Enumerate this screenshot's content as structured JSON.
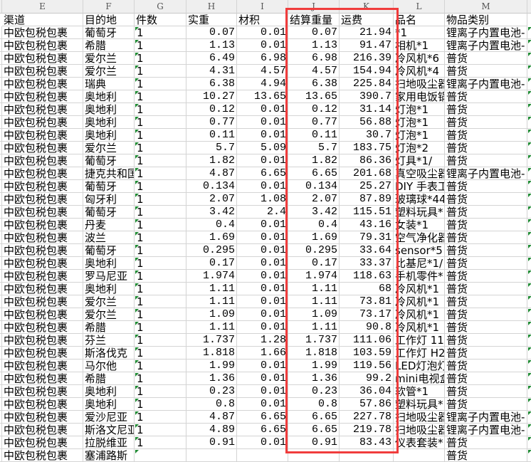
{
  "column_letters": [
    "E",
    "F",
    "G",
    "H",
    "I",
    "J",
    "K",
    "L",
    "M"
  ],
  "headers": [
    "渠道",
    "目的地",
    "件数",
    "实重",
    "材积",
    "结算重量",
    "运费",
    "品名",
    "物品类别"
  ],
  "highlight_color": "#f03c3c",
  "rows": [
    [
      "中欧包税包裹",
      "葡萄牙",
      "1",
      "0.07",
      "0.01",
      "0.07",
      "21.94",
      "*1",
      "锂离子内置电池-"
    ],
    [
      "中欧包税包裹",
      "希腊",
      "1",
      "1.13",
      "0.01",
      "1.13",
      "91.47",
      "相机*1",
      "锂离子内置电池-"
    ],
    [
      "中欧包税包裹",
      "爱尔兰",
      "1",
      "6.49",
      "6.98",
      "6.98",
      "216.39",
      "冷风机*6",
      "普货"
    ],
    [
      "中欧包税包裹",
      "爱尔兰",
      "1",
      "4.31",
      "4.57",
      "4.57",
      "154.94",
      "冷风机*4",
      "普货"
    ],
    [
      "中欧包税包裹",
      "瑞典",
      "1",
      "6.38",
      "4.94",
      "6.38",
      "225.84",
      "扫地吸尘器",
      "锂离子内置电池-"
    ],
    [
      "中欧包税包裹",
      "奥地利",
      "1",
      "10.27",
      "13.65",
      "13.65",
      "390.7",
      "家用电饭锅",
      "普货"
    ],
    [
      "中欧包税包裹",
      "奥地利",
      "1",
      "0.12",
      "0.01",
      "0.12",
      "31.14",
      "灯泡*1",
      "普货"
    ],
    [
      "中欧包税包裹",
      "奥地利",
      "1",
      "0.77",
      "0.01",
      "0.77",
      "56.88",
      "灯泡*1",
      "普货"
    ],
    [
      "中欧包税包裹",
      "奥地利",
      "1",
      "0.11",
      "0.01",
      "0.11",
      "30.7",
      "灯泡*1",
      "普货"
    ],
    [
      "中欧包税包裹",
      "爱尔兰",
      "1",
      "5.7",
      "5.09",
      "5.7",
      "183.75",
      "灯泡*2",
      "普货"
    ],
    [
      "中欧包税包裹",
      "葡萄牙",
      "1",
      "1.82",
      "0.01",
      "1.82",
      "86.36",
      "灯具*1/",
      "普货"
    ],
    [
      "中欧包税包裹",
      "捷克共和国",
      "1",
      "4.87",
      "6.65",
      "6.65",
      "201.68",
      "真空吸尘器",
      "锂离子内置电池-"
    ],
    [
      "中欧包税包裹",
      "葡萄牙",
      "1",
      "0.134",
      "0.01",
      "0.134",
      "25.27",
      "DIY 手表工",
      "普货"
    ],
    [
      "中欧包税包裹",
      "匈牙利",
      "1",
      "2.07",
      "1.08",
      "2.07",
      "87.89",
      "玻璃球*44",
      "普货"
    ],
    [
      "中欧包税包裹",
      "葡萄牙",
      "1",
      "3.42",
      "2.4",
      "3.42",
      "115.51",
      "塑料玩具*",
      "普货"
    ],
    [
      "中欧包税包裹",
      "丹麦",
      "1",
      "0.4",
      "0.01",
      "0.4",
      "43.16",
      "女装*1",
      "普货"
    ],
    [
      "中欧包税包裹",
      "波兰",
      "1",
      "1.69",
      "0.01",
      "1.69",
      "79.31",
      "空气净化器",
      "普货"
    ],
    [
      "中欧包税包裹",
      "葡萄牙",
      "1",
      "0.295",
      "0.01",
      "0.295",
      "33.64",
      "sensor*5",
      "普货"
    ],
    [
      "中欧包税包裹",
      "奥地利",
      "1",
      "0.17",
      "0.01",
      "0.17",
      "33.37",
      "比基尼*1/",
      "普货"
    ],
    [
      "中欧包税包裹",
      "罗马尼亚",
      "1",
      "1.974",
      "0.01",
      "1.974",
      "118.63",
      "手机零件*",
      "普货"
    ],
    [
      "中欧包税包裹",
      "奥地利",
      "1",
      "1.11",
      "0.01",
      "1.11",
      "68",
      "冷风机*1",
      "普货"
    ],
    [
      "中欧包税包裹",
      "爱尔兰",
      "1",
      "1.11",
      "0.01",
      "1.11",
      "73.81",
      "冷风机*1",
      "普货"
    ],
    [
      "中欧包税包裹",
      "爱尔兰",
      "1",
      "1.09",
      "0.01",
      "1.09",
      "73.17",
      "冷风机*1",
      "普货"
    ],
    [
      "中欧包税包裹",
      "希腊",
      "1",
      "1.11",
      "0.01",
      "1.11",
      "90.8",
      "冷风机*1",
      "普货"
    ],
    [
      "中欧包税包裹",
      "芬兰",
      "1",
      "1.737",
      "1.28",
      "1.737",
      "111.06",
      "工作灯 11",
      "普货"
    ],
    [
      "中欧包税包裹",
      "斯洛伐克",
      "1",
      "1.818",
      "1.66",
      "1.818",
      "103.59",
      "工作灯 H2",
      "普货"
    ],
    [
      "中欧包税包裹",
      "马尔他",
      "1",
      "1.99",
      "0.01",
      "1.99",
      "119.56",
      "LED灯泡灯",
      "普货"
    ],
    [
      "中欧包税包裹",
      "希腊",
      "1",
      "1.36",
      "0.01",
      "1.36",
      "99.2",
      "mini电视盒",
      "普货"
    ],
    [
      "中欧包税包裹",
      "奥地利",
      "1",
      "0.23",
      "0.01",
      "0.23",
      "36.04",
      "软管*1",
      "普货"
    ],
    [
      "中欧包税包裹",
      "奥地利",
      "1",
      "0.8",
      "0.01",
      "0.8",
      "57.86",
      "塑料玩具*",
      "普货"
    ],
    [
      "中欧包税包裹",
      "爱沙尼亚",
      "1",
      "4.87",
      "6.65",
      "6.65",
      "227.78",
      "扫地吸尘器",
      "锂离子内置电池-"
    ],
    [
      "中欧包税包裹",
      "斯洛文尼亚",
      "1",
      "4.89",
      "6.65",
      "6.65",
      "219.78",
      "扫地吸尘器",
      "锂离子内置电池-"
    ],
    [
      "中欧包税包裹",
      "拉脱维亚",
      "1",
      "0.91",
      "0.01",
      "0.91",
      "83.43",
      "仪表套装*",
      "普货"
    ],
    [
      "中欧包税包裹",
      "塞浦路斯",
      "",
      "",
      "",
      "",
      "",
      "",
      "普货"
    ]
  ]
}
